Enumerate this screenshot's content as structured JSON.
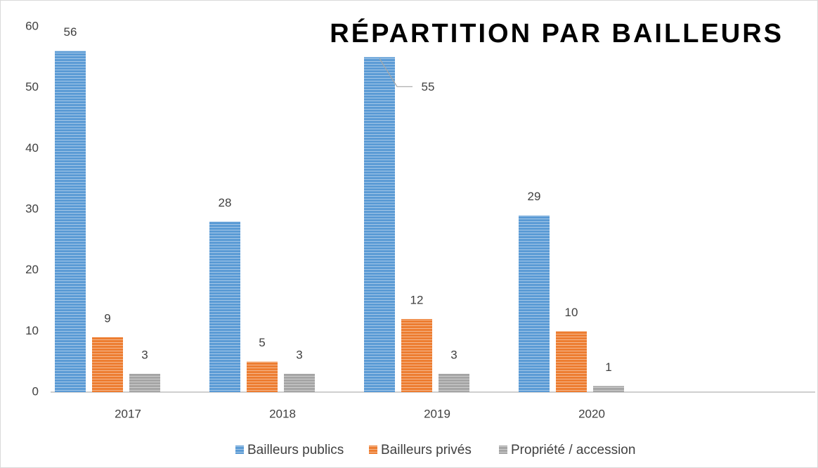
{
  "chart_data": {
    "type": "bar",
    "title": "RÉPARTITION PAR BAILLEURS",
    "categories": [
      "2017",
      "2018",
      "2019",
      "2020",
      null
    ],
    "series": [
      {
        "name": "Bailleurs publics",
        "color": "#5b9bd5",
        "values": [
          56,
          28,
          55,
          29,
          null
        ]
      },
      {
        "name": "Bailleurs privés",
        "color": "#ed7d31",
        "values": [
          9,
          5,
          12,
          10,
          null
        ]
      },
      {
        "name": "Propriété / accession",
        "color": "#a5a5a5",
        "values": [
          3,
          3,
          3,
          1,
          null
        ]
      }
    ],
    "ylim": [
      0,
      60
    ],
    "yticks": [
      0,
      10,
      20,
      30,
      40,
      50,
      60
    ],
    "grid": false,
    "legend": "bottom"
  }
}
